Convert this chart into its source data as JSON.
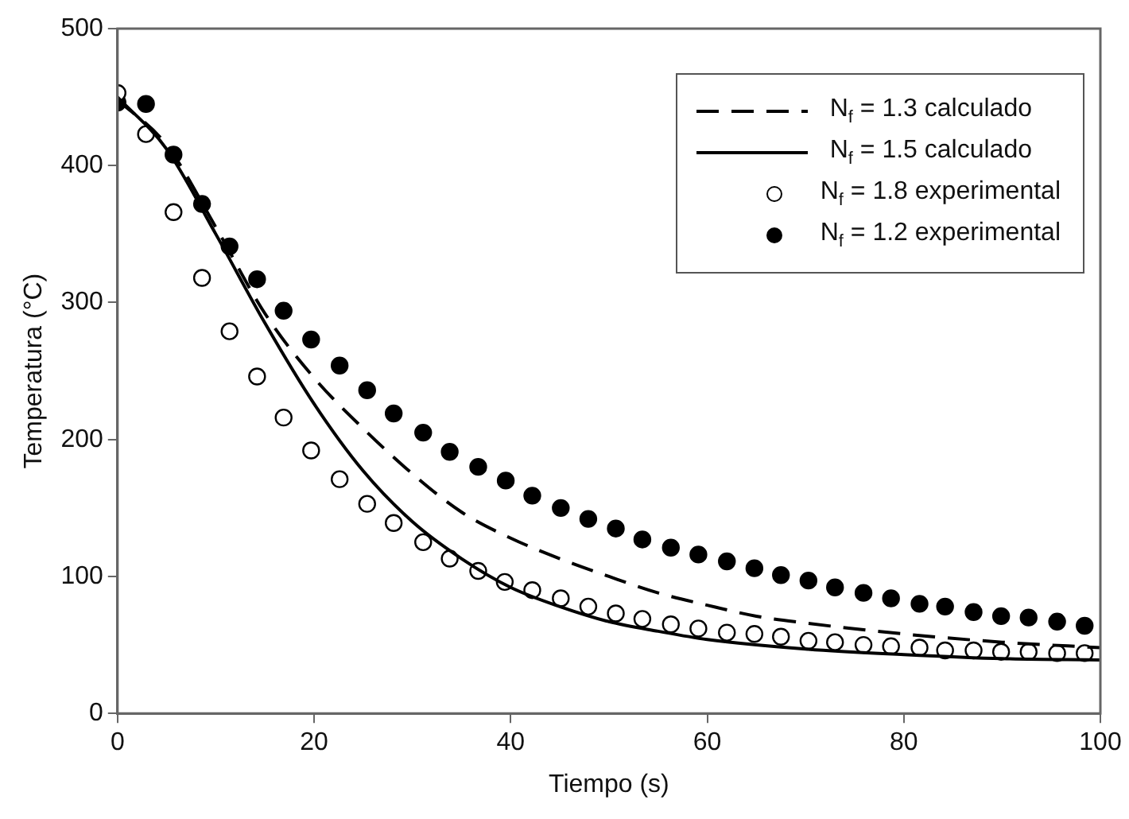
{
  "chart_data": {
    "type": "line",
    "xlabel": "Tiempo (s)",
    "ylabel": "Temperatura (°C)",
    "xlim": [
      0,
      100
    ],
    "xticks": [
      0,
      20,
      40,
      60,
      80,
      100
    ],
    "ylim": [
      0,
      500
    ],
    "yticks": [
      0,
      100,
      200,
      300,
      400,
      500
    ],
    "grid": false,
    "legend": "top right",
    "series": [
      {
        "name": "N$_{f}$ = 1.3 calculado",
        "color": "#000000",
        "line_style": "dashed",
        "marker": "none",
        "x": [
          0,
          5,
          10,
          15,
          20,
          25,
          30,
          35,
          40,
          45,
          50,
          55,
          60,
          65,
          70,
          80,
          90,
          100
        ],
        "values": [
          448,
          415,
          355,
          292,
          245,
          208,
          175,
          147,
          128,
          113,
          100,
          88,
          79,
          71,
          66,
          58,
          52,
          48
        ]
      },
      {
        "name": "N$_{f}$ = 1.5 calculado",
        "color": "#000000",
        "line_style": "solid",
        "marker": "none",
        "x": [
          0,
          5,
          10,
          15,
          20,
          25,
          30,
          35,
          40,
          45,
          50,
          55,
          60,
          70,
          80,
          90,
          100
        ],
        "values": [
          450,
          412,
          350,
          285,
          226,
          177,
          140,
          113,
          92,
          78,
          67,
          60,
          54,
          47,
          43,
          40,
          39
        ]
      },
      {
        "name": "N$_{f}$ = 1.8 experimental",
        "type": "scatter",
        "color": "#ffffff",
        "marker": "circle",
        "x": [
          0,
          2.9,
          5.7,
          8.6,
          11.4,
          14.2,
          16.9,
          19.7,
          22.6,
          25.4,
          28.1,
          31.1,
          33.8,
          36.7,
          39.4,
          42.2,
          45.1,
          47.9,
          50.7,
          53.4,
          56.3,
          59.1,
          62,
          64.8,
          67.5,
          70.3,
          73,
          75.9,
          78.7,
          81.6,
          84.2,
          87.1,
          89.9,
          92.7,
          95.6,
          98.4
        ],
        "values": [
          453,
          423,
          366,
          318,
          279,
          246,
          216,
          192,
          171,
          153,
          139,
          125,
          113,
          104,
          96,
          90,
          84,
          78,
          73,
          69,
          65,
          62,
          59,
          58,
          56,
          53,
          52,
          50,
          49,
          48,
          46,
          46,
          45,
          45,
          44,
          44
        ]
      },
      {
        "name": "N$_{f}$ = 1.2 experimental",
        "type": "scatter",
        "color": "#000000",
        "marker": "circle",
        "x": [
          0,
          2.9,
          5.7,
          8.6,
          11.4,
          14.2,
          16.9,
          19.7,
          22.6,
          25.4,
          28.1,
          31.1,
          33.8,
          36.7,
          39.5,
          42.2,
          45.1,
          47.9,
          50.7,
          53.4,
          56.3,
          59.1,
          62,
          64.8,
          67.5,
          70.3,
          73,
          75.9,
          78.7,
          81.6,
          84.2,
          87.1,
          89.9,
          92.7,
          95.6,
          98.4
        ],
        "values": [
          446,
          445,
          408,
          372,
          341,
          317,
          294,
          273,
          254,
          236,
          219,
          205,
          191,
          180,
          170,
          159,
          150,
          142,
          135,
          127,
          121,
          116,
          111,
          106,
          101,
          97,
          92,
          88,
          84,
          80,
          78,
          74,
          71,
          70,
          67,
          64
        ]
      }
    ]
  }
}
